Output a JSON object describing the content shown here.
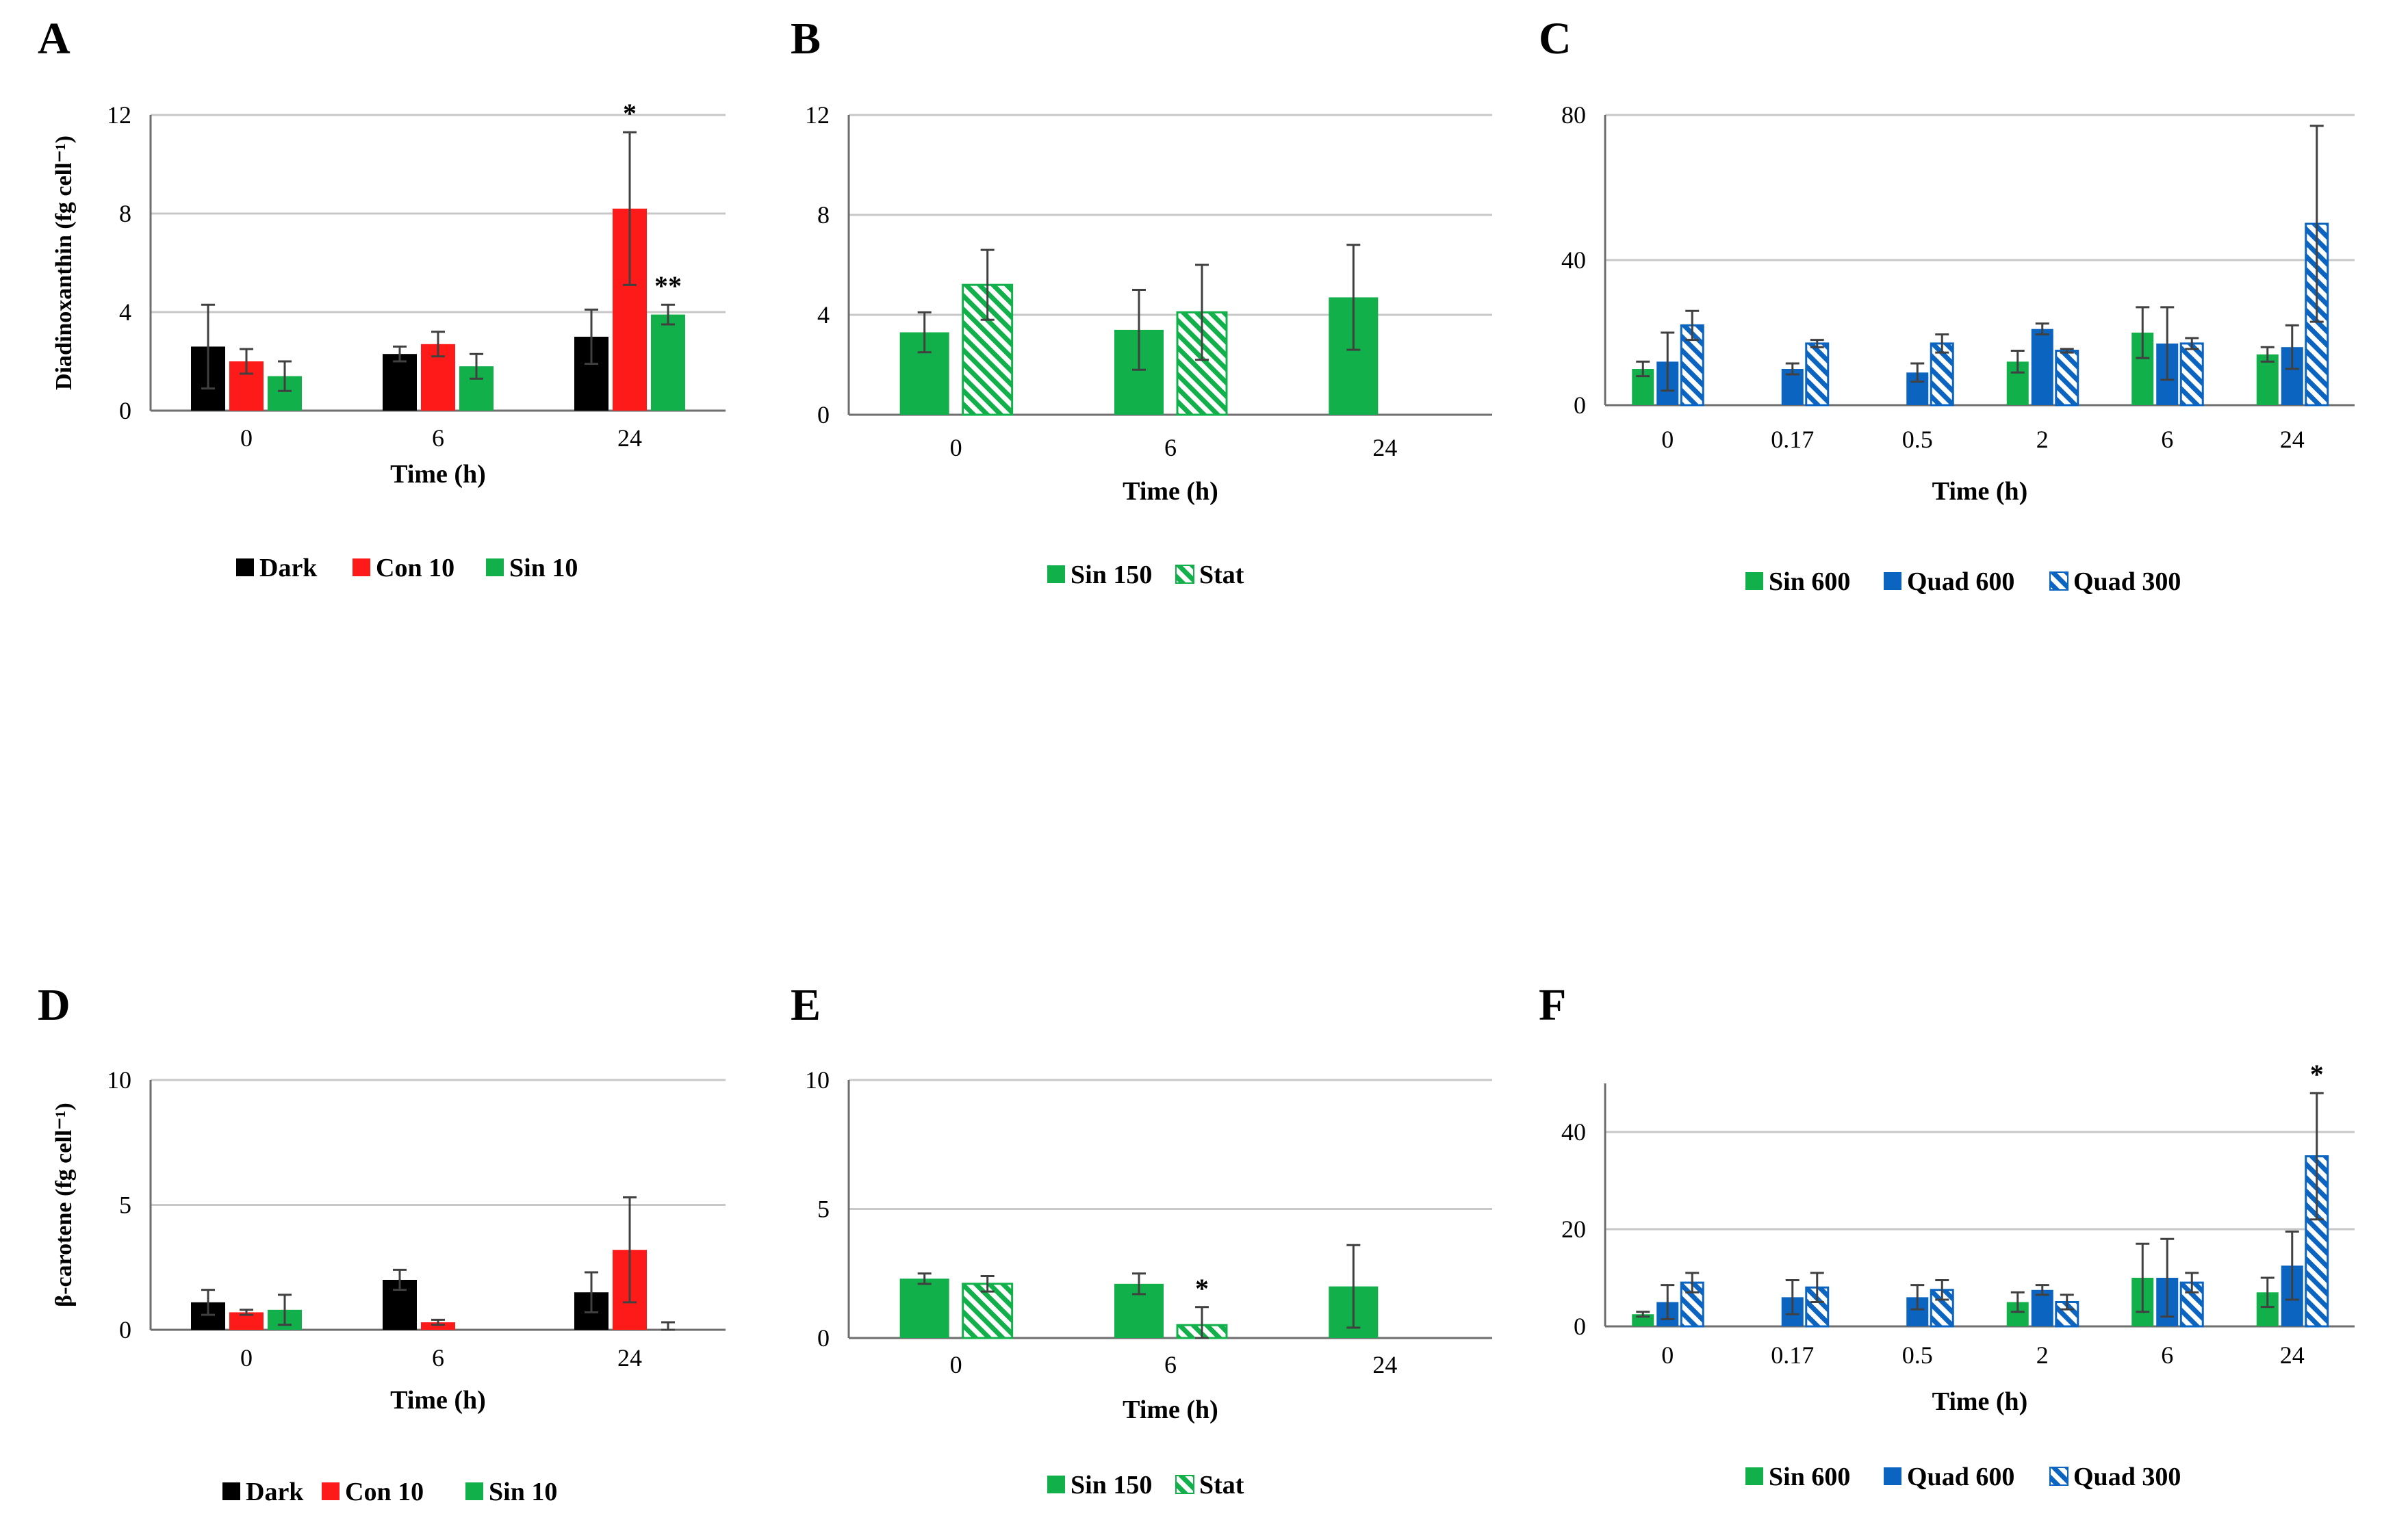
{
  "colors": {
    "dark": "#000000",
    "con": "#ff1a1a",
    "sin": "#12b04a",
    "quad": "#0a64c0",
    "grid": "#c8c8c8",
    "axis": "#6e6e6e",
    "error": "#404040"
  },
  "chart_data": [
    {
      "panel": "A",
      "type": "bar",
      "title": "A",
      "ylabel": "Diadinoxanthin (fg cell⁻¹)",
      "xlabel": "Time (h)",
      "ylim": [
        0,
        12
      ],
      "yticks": [
        "0",
        "4",
        "8",
        "12"
      ],
      "categories": [
        "0",
        "6",
        "24"
      ],
      "series": [
        {
          "name": "Dark",
          "style": "dark",
          "values": [
            2.6,
            2.3,
            3.0
          ],
          "errors": [
            1.7,
            0.3,
            1.1
          ],
          "sig": [
            "",
            "",
            ""
          ]
        },
        {
          "name": "Con 10",
          "style": "con",
          "values": [
            2.0,
            2.7,
            8.2
          ],
          "errors": [
            0.5,
            0.5,
            3.1
          ],
          "sig": [
            "",
            "",
            "*"
          ]
        },
        {
          "name": "Sin 10",
          "style": "sin",
          "values": [
            1.4,
            1.8,
            3.9
          ],
          "errors": [
            0.6,
            0.5,
            0.4
          ],
          "sig": [
            "",
            "",
            "**"
          ]
        }
      ]
    },
    {
      "panel": "B",
      "type": "bar",
      "title": "B",
      "ylabel": "",
      "xlabel": "Time (h)",
      "ylim": [
        0,
        12
      ],
      "yticks": [
        "0",
        "4",
        "8",
        "12"
      ],
      "categories": [
        "0",
        "6",
        "24"
      ],
      "series": [
        {
          "name": "Sin 150",
          "style": "sin",
          "values": [
            3.3,
            3.4,
            4.7
          ],
          "errors": [
            0.8,
            1.6,
            2.1
          ],
          "sig": [
            "",
            "",
            ""
          ]
        },
        {
          "name": "Stat",
          "style": "sin-hatch",
          "values": [
            5.2,
            4.1,
            null
          ],
          "errors": [
            1.4,
            1.9,
            null
          ],
          "sig": [
            "",
            "",
            ""
          ]
        }
      ]
    },
    {
      "panel": "C",
      "type": "bar",
      "title": "C",
      "ylabel": "",
      "xlabel": "Time (h)",
      "ylim": [
        0,
        80
      ],
      "yticks": [
        "0",
        "40",
        "80"
      ],
      "categories": [
        "0",
        "0.17",
        "0.5",
        "2",
        "6",
        "24"
      ],
      "series": [
        {
          "name": "Sin 600",
          "style": "sin",
          "values": [
            10,
            null,
            null,
            12,
            20,
            14
          ],
          "errors": [
            2,
            null,
            null,
            3,
            7,
            2
          ],
          "sig": [
            "",
            "",
            "",
            "",
            "",
            ""
          ]
        },
        {
          "name": "Quad 600",
          "style": "quad",
          "values": [
            12,
            10,
            9,
            21,
            17,
            16
          ],
          "errors": [
            8,
            1.5,
            2.5,
            1.5,
            10,
            6
          ],
          "sig": [
            "",
            "",
            "",
            "",
            "",
            ""
          ]
        },
        {
          "name": "Quad 300",
          "style": "quad-hatch",
          "values": [
            22,
            17,
            17,
            15,
            17,
            50
          ],
          "errors": [
            4,
            1,
            2.5,
            0.5,
            1.5,
            27
          ],
          "sig": [
            "",
            "",
            "",
            "",
            "",
            ""
          ]
        }
      ]
    },
    {
      "panel": "D",
      "type": "bar",
      "title": "D",
      "ylabel": "β-carotene (fg cell⁻¹)",
      "xlabel": "Time (h)",
      "ylim": [
        0,
        10
      ],
      "yticks": [
        "0",
        "5",
        "10"
      ],
      "categories": [
        "0",
        "6",
        "24"
      ],
      "series": [
        {
          "name": "Dark",
          "style": "dark",
          "values": [
            1.1,
            2.0,
            1.5
          ],
          "errors": [
            0.5,
            0.4,
            0.8
          ],
          "sig": [
            "",
            "",
            ""
          ]
        },
        {
          "name": "Con 10",
          "style": "con",
          "values": [
            0.7,
            0.3,
            3.2
          ],
          "errors": [
            0.1,
            0.1,
            2.1
          ],
          "sig": [
            "",
            "",
            ""
          ]
        },
        {
          "name": "Sin 10",
          "style": "sin",
          "values": [
            0.8,
            0.0,
            0.0
          ],
          "errors": [
            0.6,
            0.0,
            0.3
          ],
          "sig": [
            "",
            "",
            ""
          ]
        }
      ]
    },
    {
      "panel": "E",
      "type": "bar",
      "title": "E",
      "ylabel": "",
      "xlabel": "Time (h)",
      "ylim": [
        0,
        10
      ],
      "yticks": [
        "0",
        "5",
        "10"
      ],
      "categories": [
        "0",
        "6",
        "24"
      ],
      "series": [
        {
          "name": "Sin 150",
          "style": "sin",
          "values": [
            2.3,
            2.1,
            2.0
          ],
          "errors": [
            0.2,
            0.4,
            1.6
          ],
          "sig": [
            "",
            "",
            ""
          ]
        },
        {
          "name": "Stat",
          "style": "sin-hatch",
          "values": [
            2.1,
            0.5,
            null
          ],
          "errors": [
            0.3,
            0.7,
            null
          ],
          "sig": [
            "",
            "*",
            ""
          ]
        }
      ]
    },
    {
      "panel": "F",
      "type": "bar",
      "title": "F",
      "ylabel": "",
      "xlabel": "Time (h)",
      "ylim": [
        0,
        50
      ],
      "yticks": [
        "0",
        "20",
        "40"
      ],
      "categories": [
        "0",
        "0.17",
        "0.5",
        "2",
        "6",
        "24"
      ],
      "series": [
        {
          "name": "Sin 600",
          "style": "sin",
          "values": [
            2.5,
            null,
            null,
            5,
            10,
            7
          ],
          "errors": [
            0.5,
            null,
            null,
            2,
            7,
            3
          ],
          "sig": [
            "",
            "",
            "",
            "",
            "",
            ""
          ]
        },
        {
          "name": "Quad 600",
          "style": "quad",
          "values": [
            5,
            6,
            6,
            7.5,
            10,
            12.5
          ],
          "errors": [
            3.5,
            3.5,
            2.5,
            1,
            8,
            7
          ],
          "sig": [
            "",
            "",
            "",
            "",
            "",
            ""
          ]
        },
        {
          "name": "Quad 300",
          "style": "quad-hatch",
          "values": [
            9,
            8,
            7.5,
            5,
            9,
            35
          ],
          "errors": [
            2,
            3,
            2,
            1.5,
            2,
            13
          ],
          "sig": [
            "",
            "",
            "",
            "",
            "",
            "*"
          ]
        }
      ]
    }
  ]
}
